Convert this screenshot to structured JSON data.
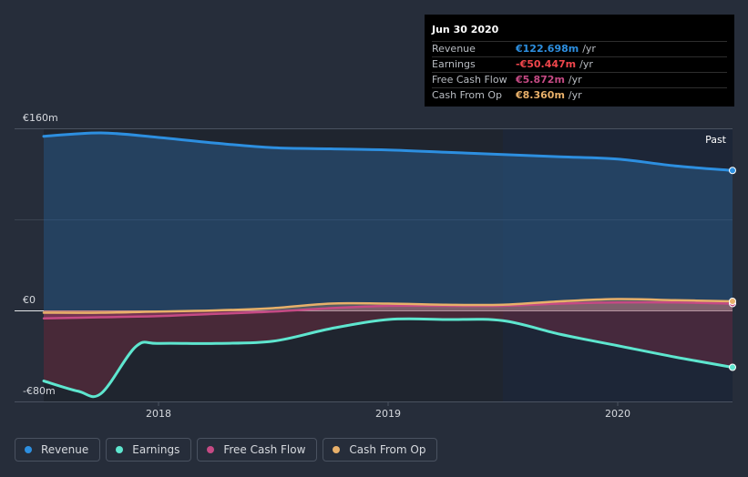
{
  "colors": {
    "revenue": "#2d8fe0",
    "earnings": "#5ee6cf",
    "free_cash_flow": "#c54a84",
    "cash_from_op": "#e8b06a",
    "earnings_value": "#f0464c",
    "background": "#262d3a"
  },
  "tooltip": {
    "date": "Jun 30 2020",
    "rows": [
      {
        "label": "Revenue",
        "value": "€122.698m",
        "unit": "/yr"
      },
      {
        "label": "Earnings",
        "value": "-€50.447m",
        "unit": "/yr"
      },
      {
        "label": "Free Cash Flow",
        "value": "€5.872m",
        "unit": "/yr"
      },
      {
        "label": "Cash From Op",
        "value": "€8.360m",
        "unit": "/yr"
      }
    ]
  },
  "legend": {
    "items": [
      {
        "label": "Revenue",
        "icon": "revenue-dot-icon"
      },
      {
        "label": "Earnings",
        "icon": "earnings-dot-icon"
      },
      {
        "label": "Free Cash Flow",
        "icon": "fcf-dot-icon"
      },
      {
        "label": "Cash From Op",
        "icon": "cfo-dot-icon"
      }
    ]
  },
  "chart_data": {
    "type": "area",
    "past_label": "Past",
    "y_tick_labels": [
      "€160m",
      "€0",
      "-€80m"
    ],
    "y_ticks": [
      160,
      0,
      -80
    ],
    "ylim": [
      -80,
      160
    ],
    "xlim": [
      2017.5,
      2020.5
    ],
    "x_tick_labels": [
      "2018",
      "2019",
      "2020"
    ],
    "x_ticks": [
      2018,
      2019,
      2020
    ],
    "past_start": 2019.5,
    "series": [
      {
        "name": "Revenue",
        "key": "revenue",
        "x": [
          2017.5,
          2017.75,
          2018.0,
          2018.25,
          2018.5,
          2018.75,
          2019.0,
          2019.25,
          2019.5,
          2019.75,
          2020.0,
          2020.25,
          2020.5
        ],
        "y": [
          153,
          156,
          152,
          147,
          143,
          142,
          141,
          139,
          137,
          135,
          133,
          127,
          123
        ]
      },
      {
        "name": "Earnings",
        "key": "earnings",
        "x": [
          2017.5,
          2017.65,
          2017.75,
          2017.9,
          2018.0,
          2018.25,
          2018.5,
          2018.75,
          2019.0,
          2019.25,
          2019.5,
          2019.75,
          2020.0,
          2020.25,
          2020.5
        ],
        "y": [
          -62,
          -71,
          -73,
          -32,
          -29,
          -29,
          -27,
          -16,
          -8,
          -8,
          -9,
          -21,
          -31,
          -41,
          -50
        ]
      },
      {
        "name": "Free Cash Flow",
        "key": "free_cash_flow",
        "x": [
          2017.5,
          2017.75,
          2018.0,
          2018.25,
          2018.5,
          2018.75,
          2019.0,
          2019.25,
          2019.5,
          2019.75,
          2020.0,
          2020.25,
          2020.5
        ],
        "y": [
          -7,
          -6,
          -5,
          -3,
          -1,
          2,
          4,
          4,
          4,
          6,
          7,
          7,
          6
        ]
      },
      {
        "name": "Cash From Op",
        "key": "cash_from_op",
        "x": [
          2017.5,
          2017.75,
          2018.0,
          2018.25,
          2018.5,
          2018.75,
          2019.0,
          2019.25,
          2019.5,
          2019.75,
          2020.0,
          2020.25,
          2020.5
        ],
        "y": [
          -2,
          -2,
          -1,
          0,
          2,
          6,
          6,
          5,
          5,
          8,
          10,
          9,
          8
        ]
      }
    ]
  }
}
